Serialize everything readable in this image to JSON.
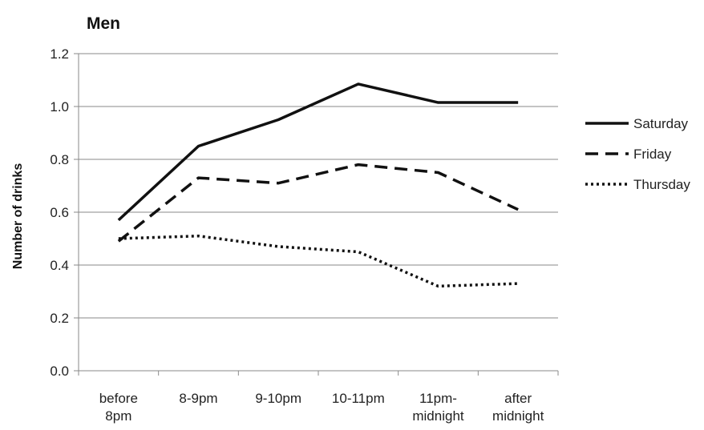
{
  "chart_data": {
    "type": "line",
    "title": "Men",
    "xlabel": "",
    "ylabel": "Number of drinks",
    "ylim": [
      0,
      1.2
    ],
    "yticks": [
      "0.0",
      "0.2",
      "0.4",
      "0.6",
      "0.8",
      "1.0",
      "1.2"
    ],
    "categories": [
      [
        "before",
        "8pm"
      ],
      [
        "8-9pm"
      ],
      [
        "9-10pm"
      ],
      [
        "10-11pm"
      ],
      [
        "11pm-",
        "midnight"
      ],
      [
        "after",
        "midnight"
      ]
    ],
    "grid": "horizontal",
    "legend_position": "right",
    "series": [
      {
        "name": "Saturday",
        "style": "solid",
        "color": "#111111",
        "values": [
          0.57,
          0.85,
          0.95,
          1.085,
          1.015,
          1.015
        ]
      },
      {
        "name": "Friday",
        "style": "dashed",
        "color": "#111111",
        "values": [
          0.49,
          0.73,
          0.71,
          0.78,
          0.75,
          0.61
        ]
      },
      {
        "name": "Thursday",
        "style": "dotted",
        "color": "#111111",
        "values": [
          0.5,
          0.51,
          0.47,
          0.45,
          0.32,
          0.33
        ]
      }
    ]
  }
}
